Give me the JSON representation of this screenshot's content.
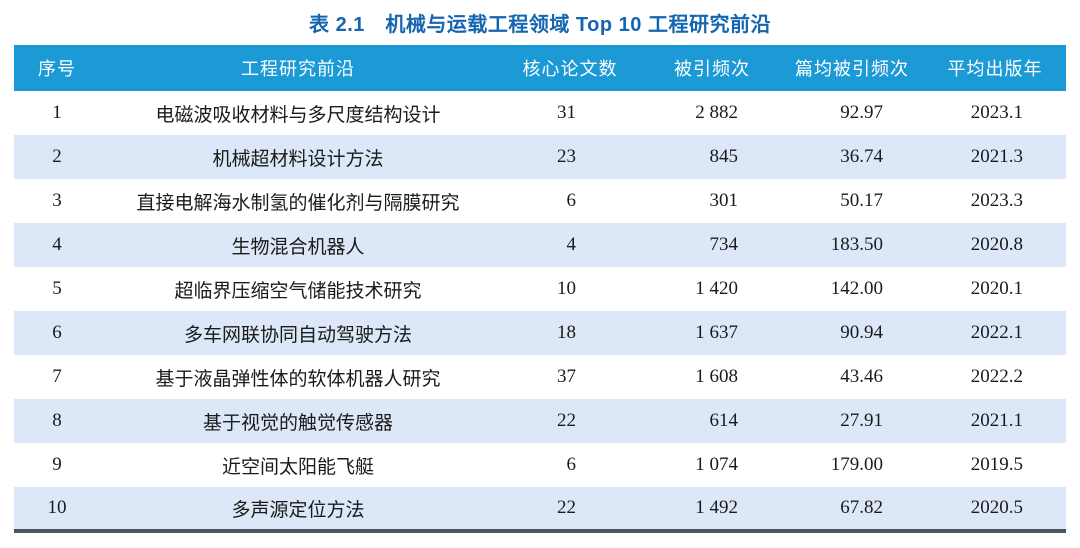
{
  "caption": {
    "label": "表 2.1　机械与运载工程领域 Top 10 工程研究前沿",
    "table_number": "表 2.1",
    "table_title": "机械与运载工程领域 Top 10 工程研究前沿"
  },
  "table": {
    "columns": [
      "序号",
      "工程研究前沿",
      "核心论文数",
      "被引频次",
      "篇均被引频次",
      "平均出版年"
    ],
    "rows": [
      [
        "1",
        "电磁波吸收材料与多尺度结构设计",
        "31",
        "2 882",
        "92.97",
        "2023.1"
      ],
      [
        "2",
        "机械超材料设计方法",
        "23",
        "845",
        "36.74",
        "2021.3"
      ],
      [
        "3",
        "直接电解海水制氢的催化剂与隔膜研究",
        "6",
        "301",
        "50.17",
        "2023.3"
      ],
      [
        "4",
        "生物混合机器人",
        "4",
        "734",
        "183.50",
        "2020.8"
      ],
      [
        "5",
        "超临界压缩空气储能技术研究",
        "10",
        "1 420",
        "142.00",
        "2020.1"
      ],
      [
        "6",
        "多车网联协同自动驾驶方法",
        "18",
        "1 637",
        "90.94",
        "2022.1"
      ],
      [
        "7",
        "基于液晶弹性体的软体机器人研究",
        "37",
        "1 608",
        "43.46",
        "2022.2"
      ],
      [
        "8",
        "基于视觉的触觉传感器",
        "22",
        "614",
        "27.91",
        "2021.1"
      ],
      [
        "9",
        "近空间太阳能飞艇",
        "6",
        "1 074",
        "179.00",
        "2019.5"
      ],
      [
        "10",
        "多声源定位方法",
        "22",
        "1 492",
        "67.82",
        "2020.5"
      ]
    ]
  },
  "colors": {
    "header_bg": "#1b9ad6",
    "row_alt_bg": "#dce8f7",
    "title_color": "#1565b0",
    "bottom_border": "#4b5861",
    "text_color": "#1b1b1b"
  }
}
